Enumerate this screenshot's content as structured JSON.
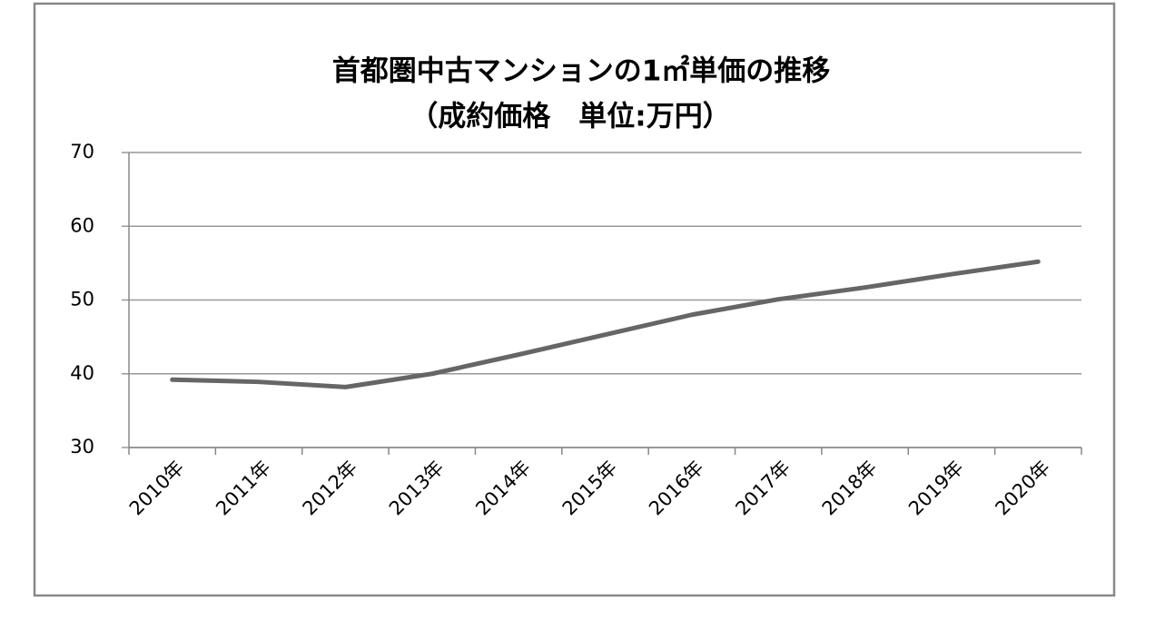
{
  "chart_data": {
    "type": "line",
    "title": "首都圏中古マンションの1㎡単価の推移",
    "subtitle": "（成約価格　単位:万円）",
    "categories": [
      "2010年",
      "2011年",
      "2012年",
      "2013年",
      "2014年",
      "2015年",
      "2016年",
      "2017年",
      "2018年",
      "2019年",
      "2020年"
    ],
    "series": [
      {
        "color": "#666666",
        "values": [
          39.2,
          38.9,
          38.2,
          40.0,
          42.6,
          45.3,
          48.0,
          50.1,
          51.7,
          53.5,
          55.2
        ]
      }
    ],
    "ylim": [
      30,
      70
    ],
    "yticks": [
      30,
      40,
      50,
      60,
      70
    ],
    "grid": true
  }
}
